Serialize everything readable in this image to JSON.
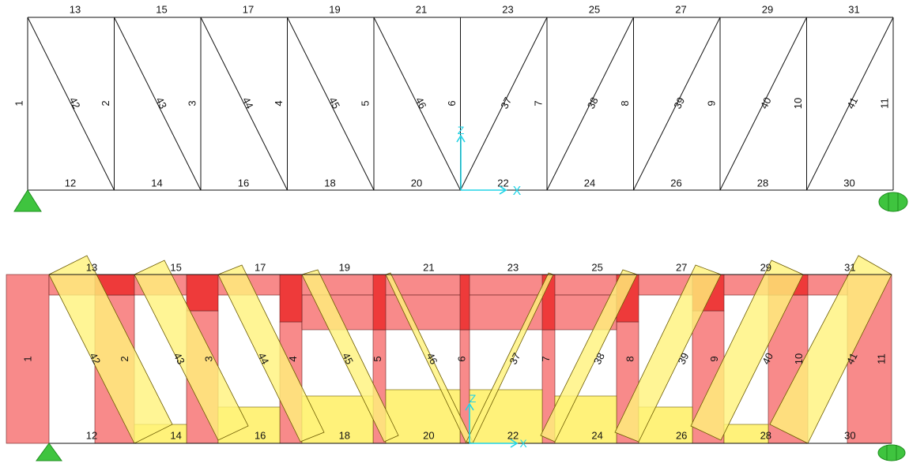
{
  "colors": {
    "member": "#111111",
    "axis": "#22d3e6",
    "support": "#3fc43f",
    "support_stroke": "#1e8f1e",
    "force_red": "#f88a8a",
    "force_red_dark": "#ee3a3a",
    "force_yellow": "#fff27a",
    "force_orange": "#f5b03a",
    "force_stroke": "#6b5a00"
  },
  "axes": {
    "x": "X",
    "z": "Z"
  },
  "undeformed": {
    "top_chord_labels": [
      "13",
      "15",
      "17",
      "19",
      "21",
      "23",
      "25",
      "27",
      "29",
      "31"
    ],
    "bottom_chord_labels": [
      "12",
      "14",
      "16",
      "18",
      "20",
      "22",
      "24",
      "26",
      "28",
      "30"
    ],
    "vertical_labels": [
      "1",
      "2",
      "3",
      "4",
      "5",
      "6",
      "7",
      "8",
      "9",
      "10",
      "11"
    ],
    "diagonal_labels": [
      "42",
      "43",
      "44",
      "45",
      "46",
      "37",
      "38",
      "39",
      "40",
      "41"
    ]
  },
  "force_diagram": {
    "top_chord_labels": [
      "13",
      "15",
      "17",
      "19",
      "21",
      "23",
      "25",
      "27",
      "29",
      "31"
    ],
    "bottom_chord_labels": [
      "12",
      "14",
      "16",
      "18",
      "20",
      "22",
      "24",
      "26",
      "28",
      "30"
    ],
    "vertical_labels": [
      "1",
      "2",
      "3",
      "4",
      "5",
      "6",
      "7",
      "8",
      "9",
      "10",
      "11"
    ],
    "diagonal_labels": [
      "42",
      "43",
      "44",
      "45",
      "46",
      "37",
      "38",
      "39",
      "40",
      "41"
    ]
  }
}
